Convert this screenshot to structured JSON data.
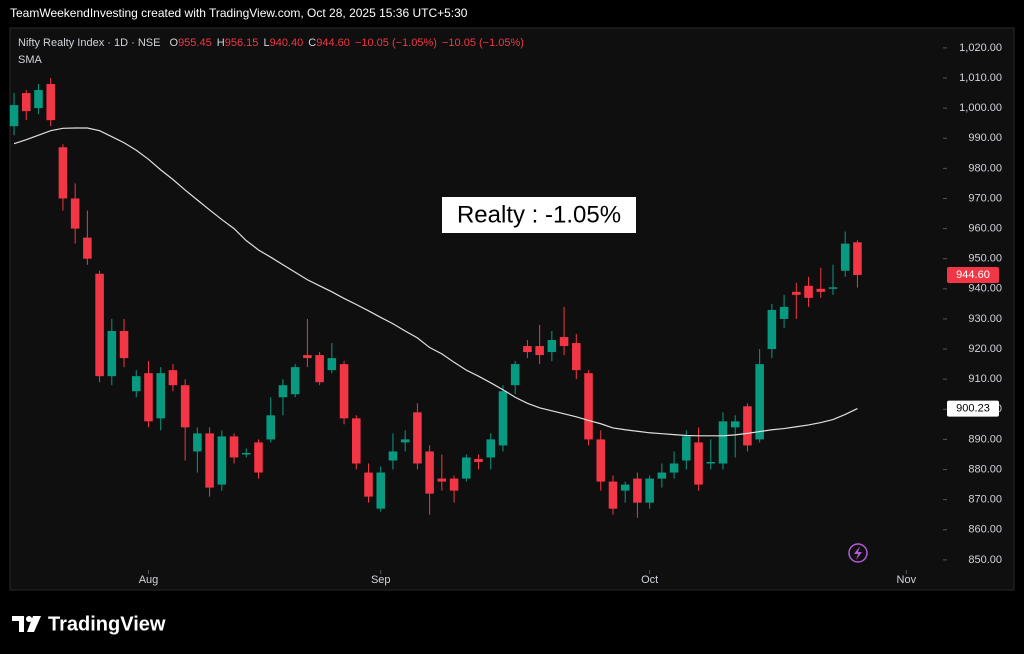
{
  "header": "TeamWeekendInvesting created with TradingView.com, Oct 28, 2025 15:36 UTC+5:30",
  "footer": "TradingView",
  "chart_data": {
    "type": "candlestick",
    "title": "Nifty Realty Index · 1D · NSE",
    "legend": {
      "o_label": "O",
      "o": "955.45",
      "h_label": "H",
      "h": "956.15",
      "l_label": "L",
      "l": "940.40",
      "c_label": "C",
      "c": "944.60",
      "change": "−10.05 (−1.05%)",
      "change2": "−10.05 (−1.05%)"
    },
    "annotation": "Realty : -1.05%",
    "up_color": "#089981",
    "down_color": "#f23645",
    "xlim": [
      -0.33,
      76
    ],
    "ylim": [
      840,
      1026.6
    ],
    "xticks": [
      {
        "value": 11,
        "label": "Aug"
      },
      {
        "value": 30,
        "label": "Sep"
      },
      {
        "value": 52,
        "label": "Oct"
      },
      {
        "value": 73,
        "label": "Nov"
      }
    ],
    "yticks": [
      {
        "value": 850,
        "label": "850.00"
      },
      {
        "value": 860,
        "label": "860.00"
      },
      {
        "value": 870,
        "label": "870.00"
      },
      {
        "value": 880,
        "label": "880.00"
      },
      {
        "value": 890,
        "label": "890.00"
      },
      {
        "value": 900,
        "label": "900.00"
      },
      {
        "value": 910,
        "label": "910.00"
      },
      {
        "value": 920,
        "label": "920.00"
      },
      {
        "value": 930,
        "label": "930.00"
      },
      {
        "value": 940,
        "label": "940.00"
      },
      {
        "value": 950,
        "label": "950.00"
      },
      {
        "value": 960,
        "label": "960.00"
      },
      {
        "value": 970,
        "label": "970.00"
      },
      {
        "value": 980,
        "label": "980.00"
      },
      {
        "value": 990,
        "label": "990.00"
      },
      {
        "value": 1000,
        "label": "1,000.00"
      },
      {
        "value": 1010,
        "label": "1,010.00"
      },
      {
        "value": 1020,
        "label": "1,020.00"
      }
    ],
    "open": [
      994,
      1005,
      1000,
      1008,
      987,
      970,
      957,
      945,
      911,
      926,
      906,
      912,
      897,
      913,
      908,
      886,
      892,
      875,
      891,
      885,
      889,
      890,
      904,
      905,
      918,
      918,
      913,
      915,
      897,
      879,
      867,
      883,
      889,
      899,
      886,
      877,
      877,
      877,
      883.5,
      884,
      888,
      908,
      921,
      921,
      919,
      924,
      922,
      912,
      890,
      876,
      873,
      877,
      869,
      877,
      879,
      883,
      889,
      882,
      882,
      894,
      901,
      890,
      920,
      930,
      939,
      941,
      940,
      940,
      946,
      955.45
    ],
    "high": [
      1005,
      1006,
      1008,
      1010,
      988,
      975,
      966,
      946,
      930,
      930,
      913,
      916,
      914,
      915,
      910,
      894,
      894,
      893,
      892,
      887,
      890,
      904,
      910,
      915,
      930,
      919,
      922,
      916,
      898,
      882,
      881,
      892,
      893,
      902,
      888,
      885,
      878,
      885,
      885,
      892,
      908,
      916,
      923,
      928,
      926,
      934,
      925,
      913,
      893,
      878,
      876,
      879,
      878,
      882,
      886,
      893,
      894,
      890,
      899,
      898,
      902,
      920,
      935,
      938,
      942,
      944,
      947,
      948,
      959,
      956.15
    ],
    "low": [
      991,
      996,
      998,
      994,
      966,
      955,
      948,
      909,
      908,
      914,
      904,
      894,
      893,
      906,
      883,
      879,
      871,
      873,
      882,
      884,
      877,
      889,
      898,
      904,
      914,
      908,
      912,
      895,
      880,
      869,
      866,
      880,
      886,
      880,
      865,
      873,
      869,
      876,
      880,
      880,
      886,
      905,
      917,
      915,
      916,
      918,
      910,
      888,
      873,
      865,
      869,
      864,
      867,
      874,
      877,
      880,
      873,
      880,
      880,
      884,
      886,
      889,
      917,
      927,
      930,
      934,
      937,
      938,
      944,
      940.4
    ],
    "close": [
      1001,
      999,
      1006,
      996,
      970,
      960,
      950,
      911,
      926,
      917,
      911,
      896,
      912,
      908,
      894,
      892,
      874,
      891,
      884,
      885.5,
      879,
      898,
      908,
      914,
      917,
      909,
      917,
      897,
      882,
      871,
      879,
      886,
      890,
      882,
      872,
      876,
      873,
      884,
      882.5,
      890,
      906,
      915,
      919,
      918,
      923,
      921,
      913,
      890,
      876,
      867,
      875,
      869,
      877,
      879,
      882,
      891,
      875,
      882.5,
      896,
      896,
      888,
      915,
      933,
      934,
      938,
      937,
      939,
      940.5,
      955,
      944.6
    ],
    "series": [
      {
        "name": "SMA",
        "color": "#e0e0e0",
        "values": [
          988.2,
          989.5,
          991,
          992.5,
          993.3,
          993.4,
          993.4,
          992.5,
          990.5,
          988.5,
          986,
          983,
          979.5,
          976.3,
          972.8,
          969.5,
          966.2,
          963,
          960,
          956,
          952.9,
          950.5,
          948,
          945.5,
          943,
          941,
          939,
          936.8,
          934.8,
          932.7,
          930.5,
          928.4,
          926,
          923.7,
          920.5,
          918.4,
          915.6,
          913,
          911,
          908.8,
          906.5,
          904,
          902,
          900.5,
          899.5,
          898.5,
          897.5,
          896.3,
          895.2,
          893.8,
          893.2,
          892.7,
          892.2,
          891.9,
          891.6,
          891.3,
          891.2,
          891.2,
          891.2,
          891.5,
          892,
          892.6,
          893.2,
          893.6,
          894.2,
          894.8,
          895.6,
          896.6,
          898.3,
          900.23
        ]
      }
    ],
    "price_labels": [
      {
        "value": 944.6,
        "label": "944.60",
        "color": "#f23645",
        "text_color": "#ffffff"
      },
      {
        "value": 900.23,
        "label": "900.23",
        "color": "#ffffff",
        "text_color": "#000000"
      }
    ]
  }
}
